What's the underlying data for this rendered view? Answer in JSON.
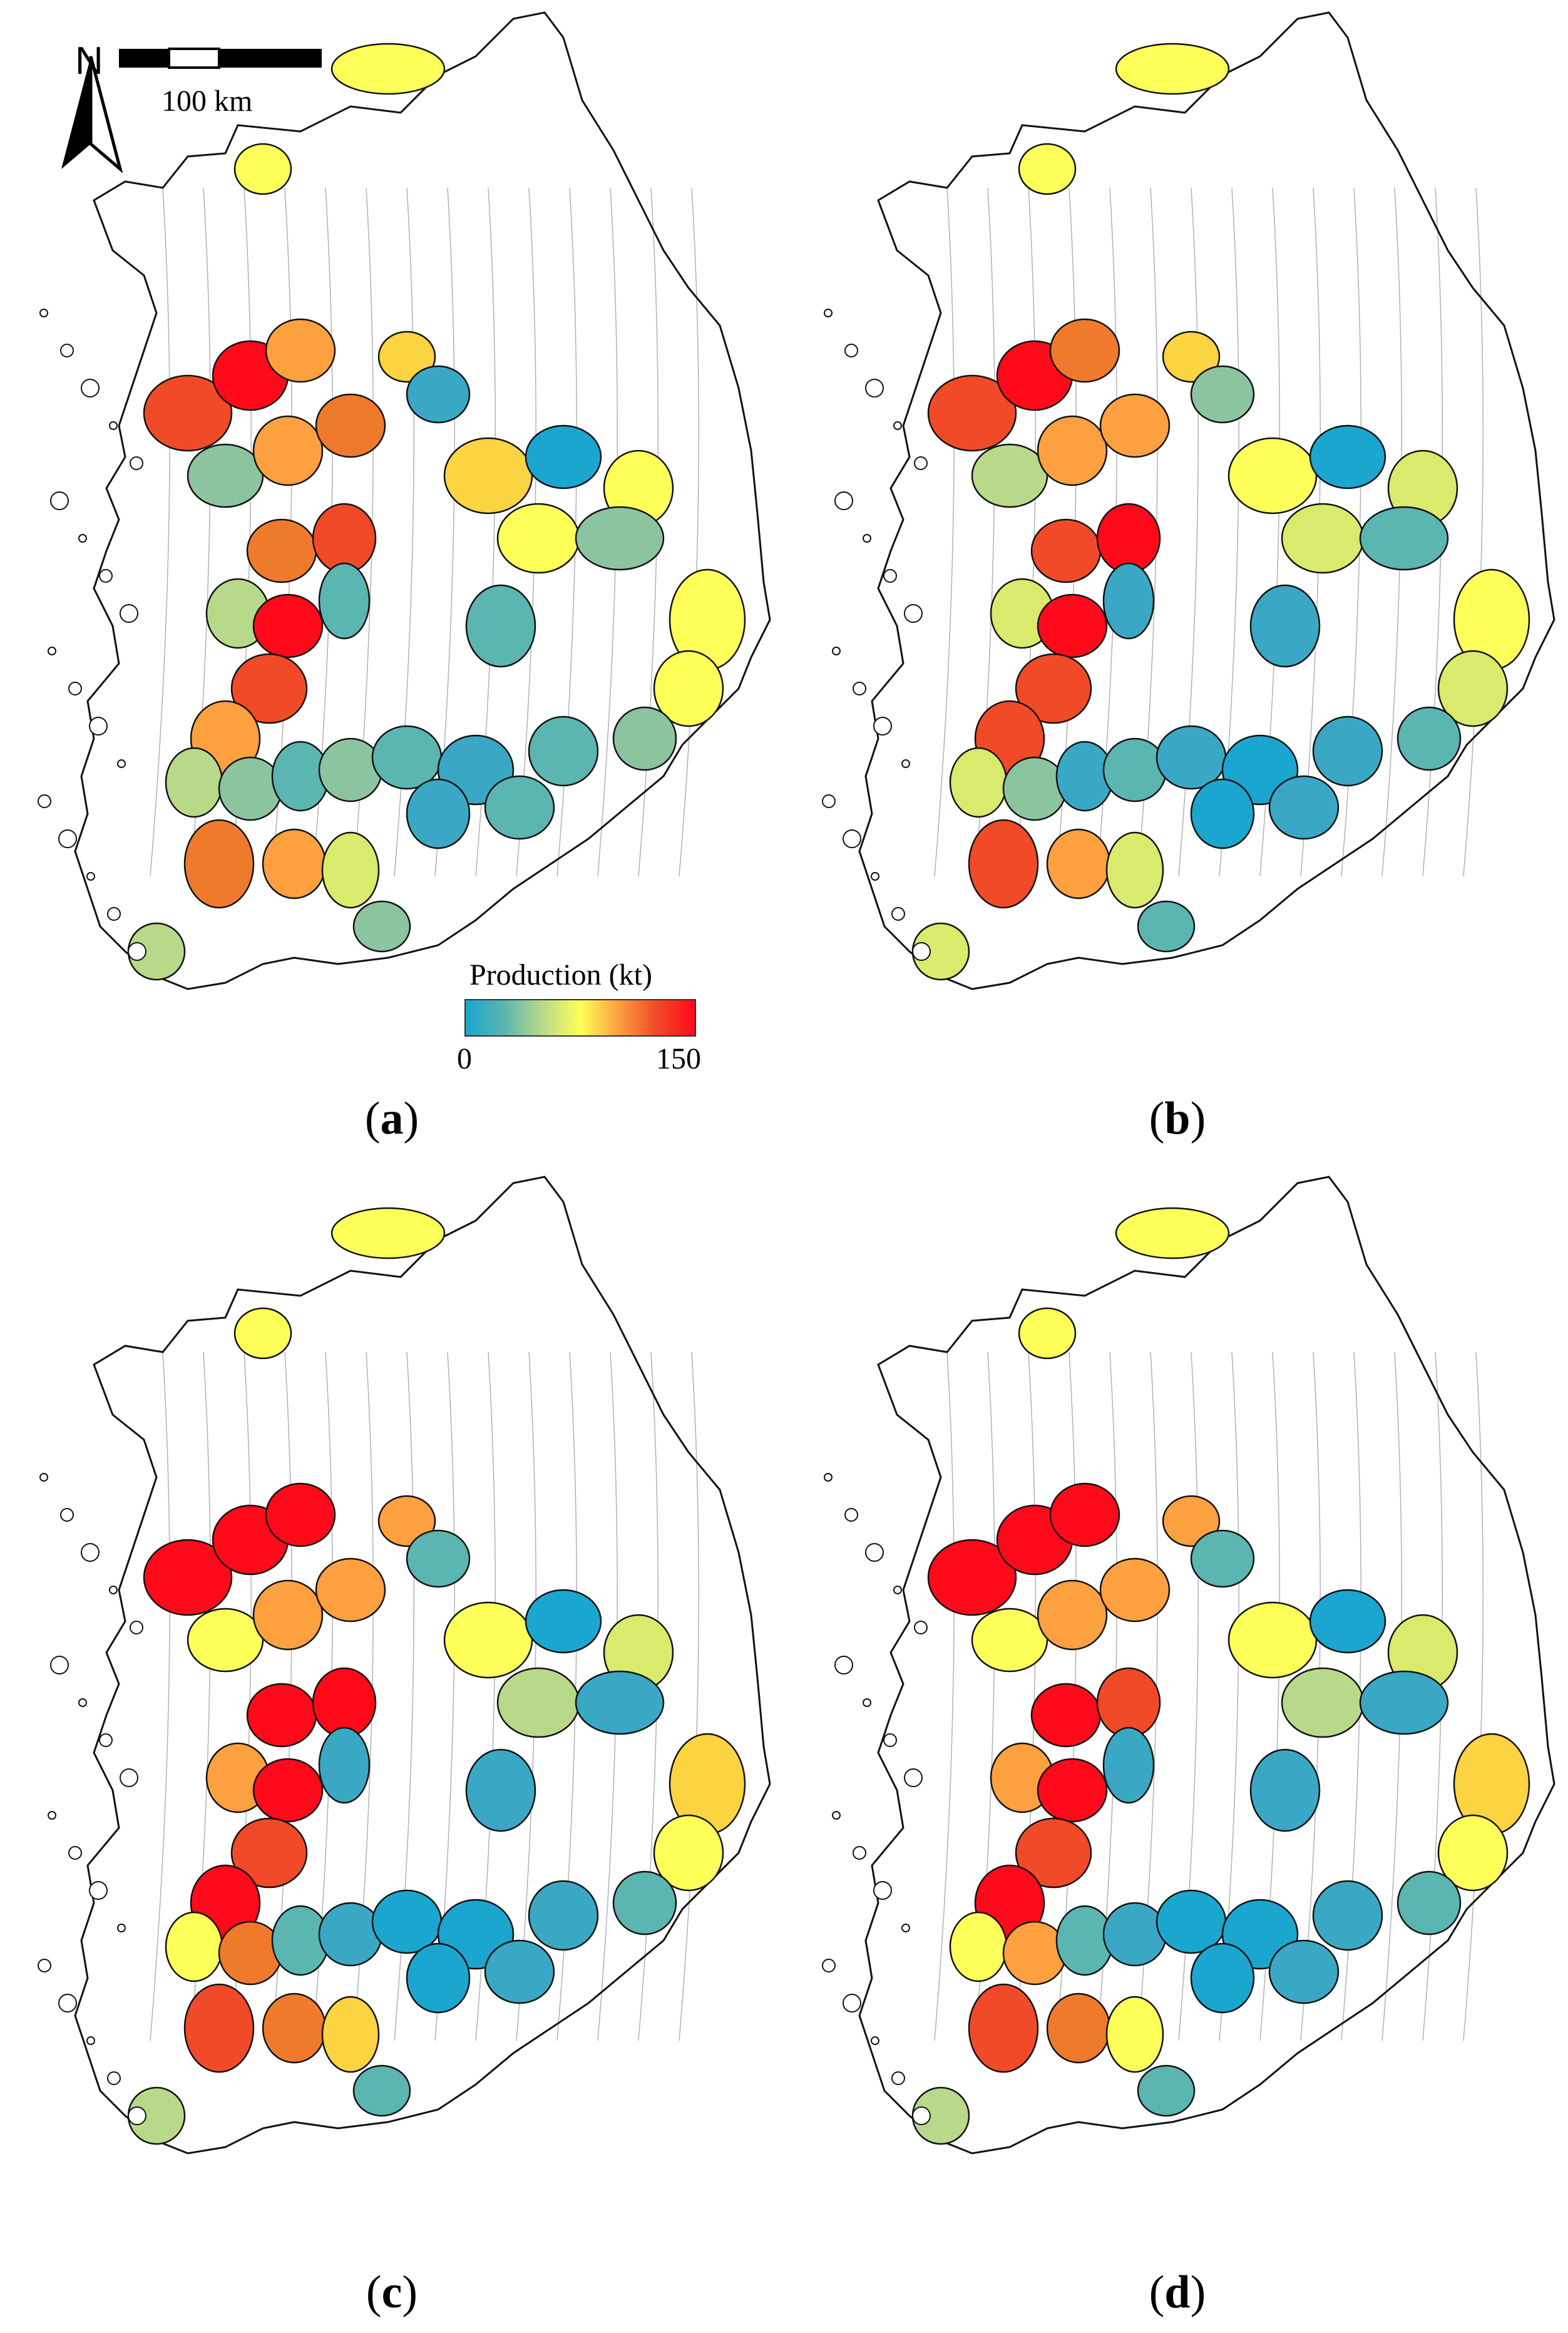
{
  "figure": {
    "north_label": "N",
    "scale_label": "100 km",
    "legend": {
      "title": "Production (kt)",
      "min": "0",
      "max": "150",
      "colors": [
        "#1ba6cf",
        "#5bb5b0",
        "#b8d98a",
        "#ffff5a",
        "#fca040",
        "#f04a28",
        "#ff0a1a"
      ]
    },
    "panels": [
      {
        "label": "a"
      },
      {
        "label": "b"
      },
      {
        "label": "c"
      },
      {
        "label": "d"
      }
    ]
  }
}
